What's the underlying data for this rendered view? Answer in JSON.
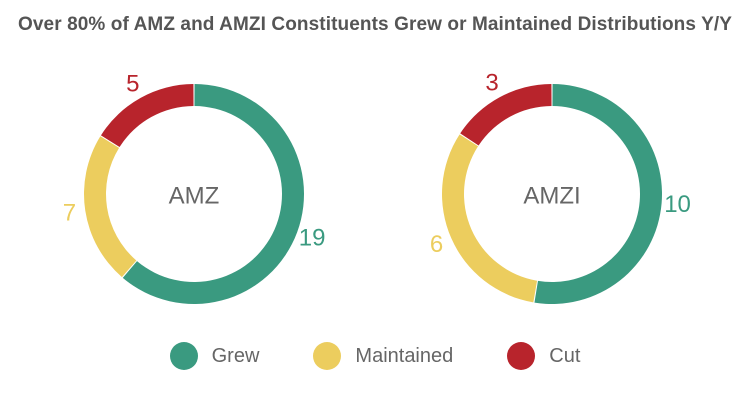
{
  "chart_data": [
    {
      "type": "pie",
      "title": "Over 80% of AMZ and AMZI Constituents Grew or Maintained Distributions Y/Y",
      "center_label": "AMZ",
      "categories": [
        "Grew",
        "Maintained",
        "Cut"
      ],
      "values": [
        19,
        7,
        5
      ]
    },
    {
      "type": "pie",
      "title": "Over 80% of AMZ and AMZI Constituents Grew or Maintained Distributions Y/Y",
      "center_label": "AMZI",
      "categories": [
        "Grew",
        "Maintained",
        "Cut"
      ],
      "values": [
        10,
        6,
        3
      ]
    }
  ],
  "title": "Over 80% of AMZ and AMZI Constituents Grew or Maintained Distributions Y/Y",
  "legend": [
    {
      "label": "Grew",
      "color": "#3a9a80"
    },
    {
      "label": "Maintained",
      "color": "#eccd5e"
    },
    {
      "label": "Cut",
      "color": "#b8242c"
    }
  ]
}
